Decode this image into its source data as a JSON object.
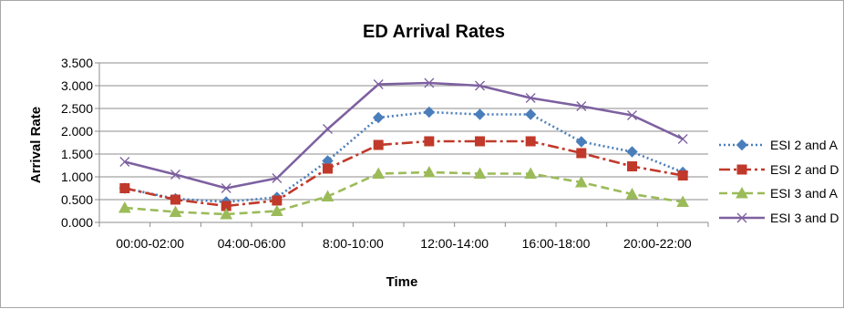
{
  "chart_data": {
    "type": "line",
    "title": "ED Arrival Rates",
    "xlabel": "Time",
    "ylabel": "Arrival Rate",
    "ylim": [
      0,
      3.5
    ],
    "y_ticks": [
      "0.000",
      "0.500",
      "1.000",
      "1.500",
      "2.000",
      "2.500",
      "3.000",
      "3.500"
    ],
    "x_tick_labels": [
      "00:00-02:00",
      "04:00-06:00",
      "8:00-10:00",
      "12:00-14:00",
      "16:00-18:00",
      "20:00-22:00"
    ],
    "grid": "horizontal",
    "legend_position": "right",
    "series": [
      {
        "name": "ESI 2 and A",
        "color": "#4a7ebb",
        "marker": "diamond",
        "dash": "dotted",
        "values": [
          0.75,
          0.52,
          0.45,
          0.55,
          1.35,
          2.3,
          2.42,
          2.37,
          2.37,
          1.77,
          1.55,
          1.1
        ]
      },
      {
        "name": "ESI 2 and D",
        "color": "#c0392b",
        "marker": "square",
        "dash": "dashdot",
        "values": [
          0.75,
          0.5,
          0.36,
          0.48,
          1.18,
          1.7,
          1.78,
          1.78,
          1.78,
          1.52,
          1.23,
          1.03
        ]
      },
      {
        "name": "ESI 3 and A",
        "color": "#9bbb59",
        "marker": "triangle",
        "dash": "dashed",
        "values": [
          0.32,
          0.23,
          0.18,
          0.25,
          0.57,
          1.07,
          1.1,
          1.07,
          1.07,
          0.88,
          0.62,
          0.45
        ]
      },
      {
        "name": "ESI 3 and D",
        "color": "#7d60a0",
        "marker": "x",
        "dash": "solid",
        "values": [
          1.33,
          1.05,
          0.75,
          0.97,
          2.05,
          3.03,
          3.06,
          3.0,
          2.73,
          2.55,
          2.35,
          1.83
        ]
      }
    ]
  }
}
